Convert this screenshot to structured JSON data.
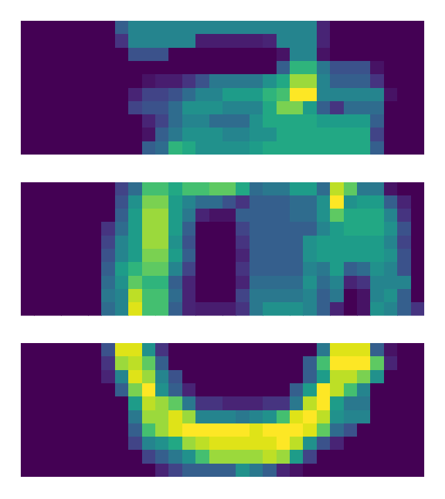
{
  "chart_data": [
    {
      "type": "heatmap",
      "color": "viridis",
      "color_range": [
        0,
        1
      ],
      "tick_labels": false,
      "cells": [
        [
          0,
          0,
          0,
          0,
          0,
          0,
          0,
          0.3,
          0.45,
          0.45,
          0.45,
          0.45,
          0.45,
          0.45,
          0.45,
          0.45,
          0.45,
          0.45,
          0.45,
          0.45,
          0.45,
          0.45,
          0.1,
          0,
          0,
          0,
          0,
          0,
          0,
          0
        ],
        [
          0,
          0,
          0,
          0,
          0,
          0,
          0,
          0.15,
          0.45,
          0.45,
          0.45,
          0.45,
          0.45,
          0.08,
          0.08,
          0.08,
          0.08,
          0.08,
          0.1,
          0.45,
          0.45,
          0.45,
          0.1,
          0,
          0,
          0,
          0,
          0,
          0,
          0
        ],
        [
          0,
          0,
          0,
          0,
          0,
          0,
          0,
          0,
          0.25,
          0.25,
          0.25,
          0,
          0,
          0,
          0,
          0,
          0,
          0,
          0,
          0.05,
          0.45,
          0.45,
          0.05,
          0,
          0,
          0,
          0,
          0,
          0,
          0
        ],
        [
          0,
          0,
          0,
          0,
          0,
          0,
          0,
          0,
          0,
          0,
          0,
          0,
          0,
          0,
          0,
          0,
          0,
          0,
          0,
          0.3,
          0.65,
          0.65,
          0.4,
          0.25,
          0.25,
          0.25,
          0.05,
          0,
          0,
          0
        ],
        [
          0,
          0,
          0,
          0,
          0,
          0,
          0,
          0,
          0,
          0.05,
          0.08,
          0.08,
          0.15,
          0.25,
          0.4,
          0.4,
          0.4,
          0.4,
          0.5,
          0.6,
          0.85,
          0.85,
          0.45,
          0.3,
          0.3,
          0.3,
          0.15,
          0,
          0,
          0
        ],
        [
          0,
          0,
          0,
          0,
          0,
          0,
          0,
          0,
          0.1,
          0.2,
          0.2,
          0.25,
          0.35,
          0.45,
          0.45,
          0.55,
          0.55,
          0.55,
          0.65,
          0.7,
          1,
          1,
          0.45,
          0.45,
          0.45,
          0.45,
          0.45,
          0.05,
          0,
          0
        ],
        [
          0,
          0,
          0,
          0,
          0,
          0,
          0,
          0,
          0.2,
          0.25,
          0.25,
          0.35,
          0.5,
          0.5,
          0.5,
          0.45,
          0.45,
          0.45,
          0.6,
          0.8,
          0.8,
          0.55,
          0.3,
          0.15,
          0.35,
          0.35,
          0.35,
          0,
          0,
          0
        ],
        [
          0,
          0,
          0,
          0,
          0,
          0,
          0,
          0,
          0,
          0.1,
          0.2,
          0.35,
          0.45,
          0.45,
          0.35,
          0.35,
          0.35,
          0.5,
          0.6,
          0.6,
          0.6,
          0.6,
          0.55,
          0.55,
          0.55,
          0.55,
          0.3,
          0,
          0,
          0
        ],
        [
          0,
          0,
          0,
          0,
          0,
          0,
          0,
          0,
          0,
          0.05,
          0.3,
          0.4,
          0.5,
          0.5,
          0.5,
          0.45,
          0.45,
          0.5,
          0.5,
          0.6,
          0.6,
          0.6,
          0.6,
          0.6,
          0.6,
          0.6,
          0.2,
          0,
          0,
          0
        ],
        [
          0,
          0,
          0,
          0,
          0,
          0,
          0,
          0,
          0,
          0.3,
          0.35,
          0.65,
          0.6,
          0.5,
          0.5,
          0.5,
          0.5,
          0.55,
          0.6,
          0.6,
          0.6,
          0.6,
          0.6,
          0.6,
          0.6,
          0.6,
          0.3,
          0,
          0,
          0
        ]
      ]
    },
    {
      "type": "heatmap",
      "color": "viridis",
      "color_range": [
        0,
        1
      ],
      "tick_labels": false,
      "cells": [
        [
          0,
          0,
          0,
          0,
          0,
          0,
          0,
          0.2,
          0.35,
          0.7,
          0.7,
          0.6,
          0.7,
          0.7,
          0.75,
          0.75,
          0.6,
          0.35,
          0.4,
          0.4,
          0.55,
          0.55,
          0.35,
          0.9,
          0.75,
          0.4,
          0.4,
          0.05,
          0,
          0
        ],
        [
          0,
          0,
          0,
          0,
          0,
          0,
          0,
          0.25,
          0.5,
          0.8,
          0.8,
          0.55,
          0.45,
          0.35,
          0.35,
          0.25,
          0.15,
          0.3,
          0.3,
          0.3,
          0.35,
          0.35,
          0.5,
          1,
          0.5,
          0.55,
          0.55,
          0.3,
          0.1,
          0
        ],
        [
          0,
          0,
          0,
          0,
          0,
          0,
          0,
          0.3,
          0.55,
          0.85,
          0.85,
          0.55,
          0.4,
          0.1,
          0.05,
          0.05,
          0.3,
          0.3,
          0.3,
          0.3,
          0.35,
          0.35,
          0.5,
          0.75,
          0.6,
          0.6,
          0.6,
          0.45,
          0.15,
          0
        ],
        [
          0,
          0,
          0,
          0,
          0,
          0,
          0.15,
          0.35,
          0.55,
          0.85,
          0.85,
          0.55,
          0.3,
          0,
          0,
          0,
          0.2,
          0.3,
          0.3,
          0.3,
          0.3,
          0.3,
          0.45,
          0.55,
          0.6,
          0.6,
          0.6,
          0.5,
          0.25,
          0
        ],
        [
          0,
          0,
          0,
          0,
          0,
          0,
          0.2,
          0.45,
          0.55,
          0.85,
          0.85,
          0.5,
          0.25,
          0,
          0,
          0,
          0.15,
          0.3,
          0.3,
          0.3,
          0.3,
          0.5,
          0.55,
          0.55,
          0.55,
          0.55,
          0.55,
          0.45,
          0.2,
          0
        ],
        [
          0,
          0,
          0,
          0,
          0,
          0,
          0.25,
          0.45,
          0.55,
          0.8,
          0.8,
          0.55,
          0.3,
          0,
          0,
          0,
          0.1,
          0.3,
          0.3,
          0.3,
          0.3,
          0.5,
          0.55,
          0.55,
          0.55,
          0.55,
          0.55,
          0.5,
          0.25,
          0
        ],
        [
          0,
          0,
          0,
          0,
          0,
          0,
          0.3,
          0.55,
          0.65,
          0.75,
          0.75,
          0.45,
          0.2,
          0,
          0,
          0,
          0.15,
          0.3,
          0.3,
          0.3,
          0.3,
          0.45,
          0.4,
          0.55,
          0.3,
          0.35,
          0.5,
          0.45,
          0.25,
          0
        ],
        [
          0,
          0,
          0,
          0,
          0,
          0,
          0.35,
          0.5,
          0.75,
          0.65,
          0.65,
          0.3,
          0.1,
          0,
          0,
          0,
          0.1,
          0.35,
          0.35,
          0.35,
          0.35,
          0.5,
          0.35,
          0.45,
          0.1,
          0.15,
          0.45,
          0.45,
          0.45,
          0
        ],
        [
          0,
          0,
          0,
          0,
          0,
          0,
          0.4,
          0.45,
          0.9,
          0.7,
          0.7,
          0.35,
          0.1,
          0,
          0,
          0,
          0.2,
          0.4,
          0.4,
          0.4,
          0.4,
          0.45,
          0.3,
          0.4,
          0,
          0.05,
          0.45,
          0.5,
          0.3,
          0
        ],
        [
          0,
          0,
          0,
          0,
          0,
          0,
          0.35,
          0.45,
          0.95,
          0.7,
          0.7,
          0.3,
          0.1,
          0.08,
          0.08,
          0.08,
          0.15,
          0.4,
          0.5,
          0.5,
          0.5,
          0.45,
          0.3,
          0.1,
          0,
          0.05,
          0.5,
          0.45,
          0.3,
          0.15
        ]
      ]
    },
    {
      "type": "heatmap",
      "color": "viridis",
      "color_range": [
        0,
        1
      ],
      "tick_labels": false,
      "cells": [
        [
          0,
          0,
          0,
          0,
          0,
          0,
          0.25,
          0.95,
          0.95,
          0.5,
          0.15,
          0,
          0,
          0,
          0,
          0,
          0,
          0,
          0,
          0,
          0,
          0,
          0.4,
          0.95,
          0.95,
          0.95,
          0.3,
          0.05,
          0,
          0
        ],
        [
          0,
          0,
          0,
          0,
          0,
          0,
          0.15,
          0.85,
          0.9,
          0.75,
          0.3,
          0,
          0,
          0,
          0,
          0,
          0,
          0,
          0,
          0,
          0,
          0.3,
          0.7,
          1,
          1,
          1,
          0.75,
          0.1,
          0,
          0
        ],
        [
          0,
          0,
          0,
          0,
          0,
          0,
          0.1,
          0.45,
          0.95,
          0.85,
          0.45,
          0.25,
          0,
          0,
          0,
          0,
          0,
          0,
          0,
          0,
          0,
          0.3,
          0.55,
          0.9,
          0.9,
          0.8,
          0.5,
          0,
          0,
          0
        ],
        [
          0,
          0,
          0,
          0,
          0,
          0,
          0,
          0.3,
          0.8,
          1,
          0.5,
          0.3,
          0.1,
          0,
          0,
          0,
          0,
          0,
          0,
          0,
          0.3,
          0.55,
          1,
          0.9,
          0.7,
          0.45,
          0,
          0,
          0,
          0
        ],
        [
          0,
          0,
          0,
          0,
          0,
          0,
          0,
          0,
          0.55,
          0.9,
          0.85,
          0.75,
          0.4,
          0.15,
          0.15,
          0.1,
          0.1,
          0.1,
          0.15,
          0.15,
          0.4,
          0.9,
          1,
          0.55,
          0.4,
          0.4,
          0,
          0,
          0,
          0
        ],
        [
          0,
          0,
          0,
          0,
          0,
          0,
          0,
          0,
          0.4,
          0.85,
          0.85,
          0.95,
          0.85,
          0.45,
          0.45,
          0.45,
          0.4,
          0.45,
          0.5,
          0.7,
          0.95,
          1,
          0.9,
          0.5,
          0.45,
          0.45,
          0,
          0,
          0,
          0
        ],
        [
          0,
          0,
          0,
          0,
          0,
          0,
          0,
          0,
          0.3,
          0.7,
          0.85,
          0.95,
          1,
          1,
          1,
          1,
          1,
          0.95,
          1,
          1,
          1,
          0.95,
          0.75,
          0.35,
          0.25,
          0,
          0,
          0,
          0,
          0
        ],
        [
          0,
          0,
          0,
          0,
          0,
          0,
          0,
          0,
          0.2,
          0.45,
          0.5,
          0.6,
          0.85,
          0.9,
          0.95,
          0.95,
          0.95,
          0.95,
          0.95,
          1,
          0.9,
          0.5,
          0.25,
          0.1,
          0,
          0,
          0,
          0,
          0,
          0
        ],
        [
          0,
          0,
          0,
          0,
          0,
          0,
          0,
          0,
          0,
          0.2,
          0.3,
          0.4,
          0.5,
          0.7,
          0.85,
          0.85,
          0.85,
          0.85,
          0.9,
          0.85,
          0.55,
          0.2,
          0,
          0,
          0,
          0,
          0,
          0,
          0,
          0
        ],
        [
          0,
          0,
          0,
          0,
          0,
          0,
          0,
          0,
          0,
          0,
          0.1,
          0.2,
          0.3,
          0.3,
          0.3,
          0.3,
          0.5,
          0.4,
          0.3,
          0.1,
          0.05,
          0,
          0,
          0,
          0,
          0,
          0,
          0,
          0,
          0
        ]
      ]
    }
  ]
}
